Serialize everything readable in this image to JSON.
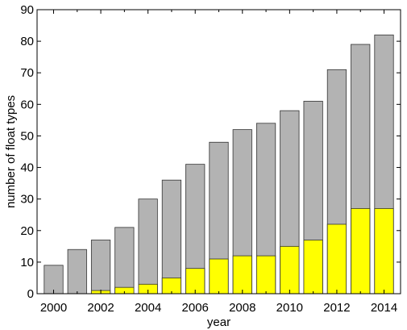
{
  "chart_data": {
    "type": "bar",
    "title": "",
    "xlabel": "year",
    "ylabel": "number of float types",
    "xlim": [
      1999.3,
      2014.7
    ],
    "ylim": [
      0,
      90
    ],
    "yticks": [
      0,
      10,
      20,
      30,
      40,
      50,
      60,
      70,
      80,
      90
    ],
    "xticks": [
      2000,
      2002,
      2004,
      2006,
      2008,
      2010,
      2012,
      2014
    ],
    "grid": false,
    "legend": "none",
    "x": [
      2000,
      2001,
      2002,
      2003,
      2004,
      2005,
      2006,
      2007,
      2008,
      2009,
      2010,
      2011,
      2012,
      2013,
      2014
    ],
    "series": [
      {
        "values": [
          9,
          14,
          17,
          21,
          30,
          36,
          41,
          48,
          52,
          54,
          58,
          61,
          71,
          79,
          82
        ],
        "color": "#b3b3b3"
      },
      {
        "values": [
          0,
          0,
          1,
          2,
          3,
          5,
          8,
          11,
          12,
          12,
          15,
          17,
          22,
          27,
          27
        ],
        "color": "#ffff00"
      }
    ]
  }
}
